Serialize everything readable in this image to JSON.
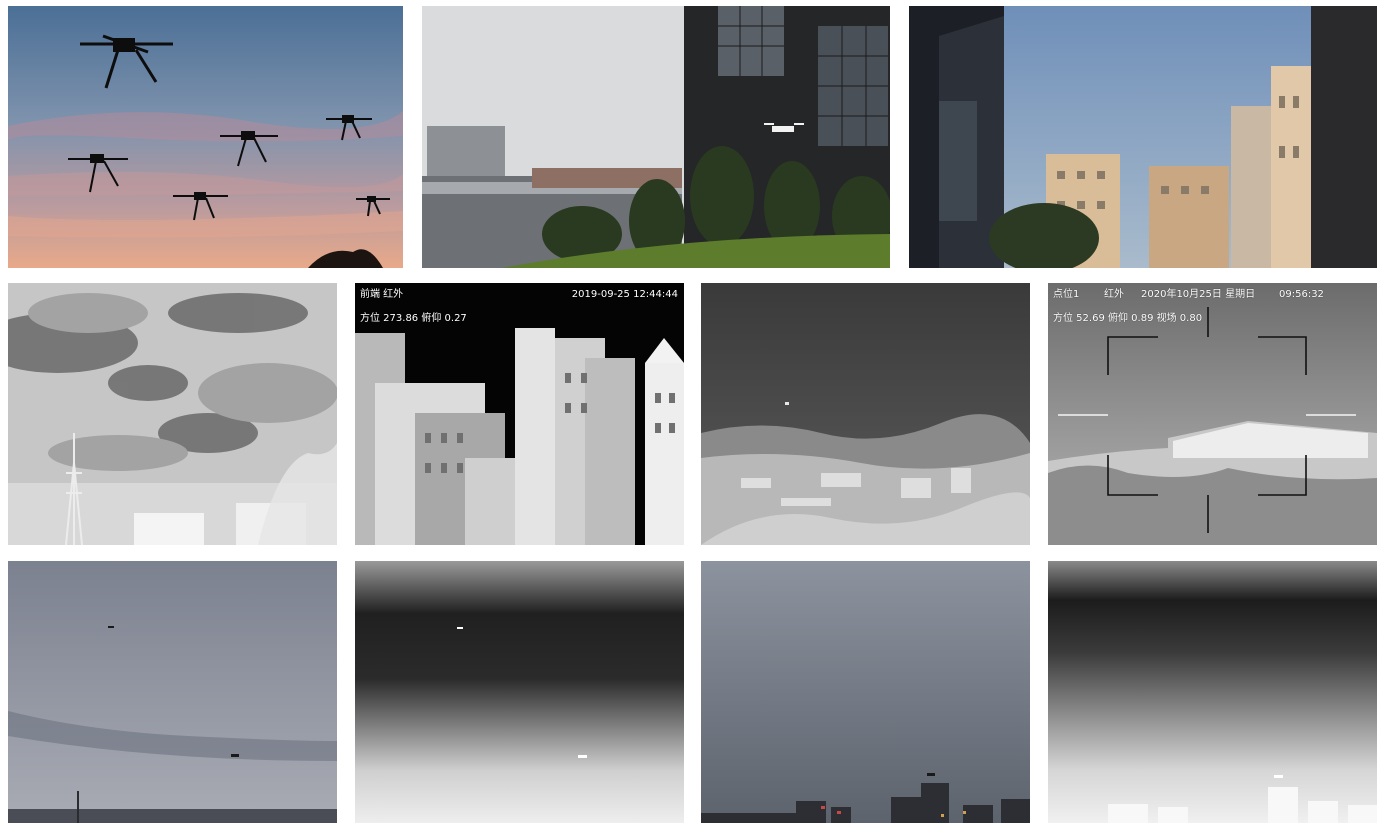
{
  "overlays": {
    "thermal_city": {
      "channel": "前端  红外",
      "datetime": "2019-09-25  12:44:44",
      "angles": "方位 273.86   俯仰 0.27"
    },
    "thermal_reticle": {
      "point": "点位1",
      "mode": "红外",
      "date": "2020年10月25日  星期日",
      "time": "09:56:32",
      "angles": "方位 52.69   俯仰 0.89   视场 0.80"
    }
  }
}
